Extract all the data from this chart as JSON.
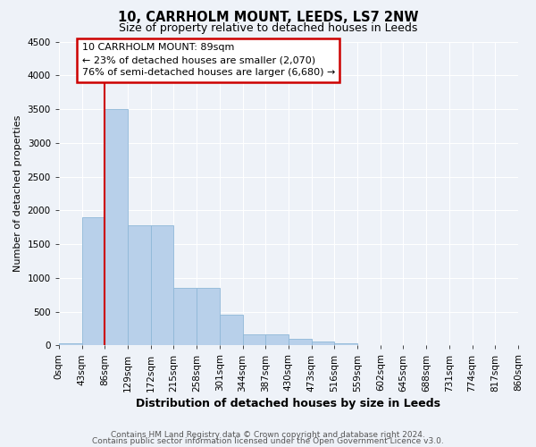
{
  "title": "10, CARRHOLM MOUNT, LEEDS, LS7 2NW",
  "subtitle": "Size of property relative to detached houses in Leeds",
  "xlabel": "Distribution of detached houses by size in Leeds",
  "ylabel": "Number of detached properties",
  "bar_color": "#b8d0ea",
  "bar_edge_color": "#8fb8d8",
  "bin_labels": [
    "0sqm",
    "43sqm",
    "86sqm",
    "129sqm",
    "172sqm",
    "215sqm",
    "258sqm",
    "301sqm",
    "344sqm",
    "387sqm",
    "430sqm",
    "473sqm",
    "516sqm",
    "559sqm",
    "602sqm",
    "645sqm",
    "688sqm",
    "731sqm",
    "774sqm",
    "817sqm",
    "860sqm"
  ],
  "bar_heights": [
    30,
    1900,
    3500,
    1780,
    1780,
    850,
    850,
    450,
    170,
    165,
    100,
    60,
    35,
    0,
    0,
    0,
    0,
    0,
    0,
    0
  ],
  "property_line_x": 2,
  "annotation_text": "10 CARRHOLM MOUNT: 89sqm\n← 23% of detached houses are smaller (2,070)\n76% of semi-detached houses are larger (6,680) →",
  "annotation_box_color": "#ffffff",
  "annotation_box_edge_color": "#cc0000",
  "vline_color": "#cc0000",
  "footer1": "Contains HM Land Registry data © Crown copyright and database right 2024.",
  "footer2": "Contains public sector information licensed under the Open Government Licence v3.0.",
  "ylim": [
    0,
    4500
  ],
  "background_color": "#eef2f8",
  "grid_color": "#ffffff",
  "title_fontsize": 10.5,
  "subtitle_fontsize": 9,
  "ylabel_fontsize": 8,
  "xlabel_fontsize": 9,
  "tick_fontsize": 7.5,
  "annotation_fontsize": 8,
  "footer_fontsize": 6.5
}
